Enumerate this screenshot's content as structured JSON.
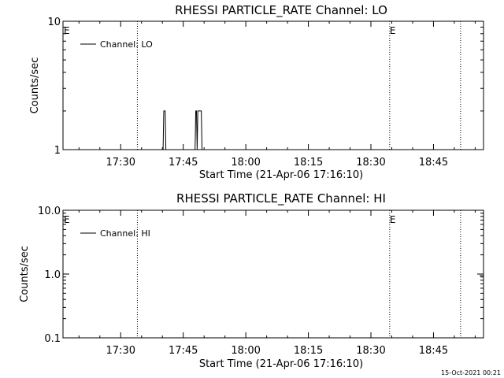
{
  "footer_timestamp": "15-Oct-2021 00:21",
  "chart_data": [
    {
      "type": "line",
      "title": "RHESSI PARTICLE_RATE Channel: LO",
      "xlabel": "Start Time (21-Apr-06 17:16:10)",
      "ylabel": "Counts/sec",
      "yscale": "log",
      "ylim": [
        1,
        10
      ],
      "ytick_values": [
        1,
        10
      ],
      "ytick_labels": [
        "1",
        "10"
      ],
      "xlim": [
        "17:16:10",
        "18:57:00"
      ],
      "xtick_labels": [
        "17:30",
        "17:45",
        "18:00",
        "18:15",
        "18:30",
        "18:45"
      ],
      "xtick_values": [
        "17:30",
        "17:45",
        "18:00",
        "18:15",
        "18:30",
        "18:45"
      ],
      "legend": "top-left",
      "series": [
        {
          "name": "Channel: LO",
          "points": [
            [
              "17:40:00",
              1
            ],
            [
              "17:40:10",
              1
            ],
            [
              "17:40:20",
              2
            ],
            [
              "17:40:40",
              2
            ],
            [
              "17:40:50",
              1
            ],
            [
              "17:41:00",
              1
            ],
            [
              "17:47:40",
              1
            ],
            [
              "17:47:50",
              1
            ],
            [
              "17:48:00",
              2
            ],
            [
              "17:48:10",
              2
            ],
            [
              "17:48:20",
              1
            ],
            [
              "17:48:30",
              2
            ],
            [
              "17:49:20",
              2
            ],
            [
              "17:49:30",
              1
            ],
            [
              "17:49:50",
              1
            ]
          ]
        }
      ],
      "vertical_lines": [
        "17:34:00",
        "18:34:30",
        "18:51:30"
      ],
      "markers": [
        {
          "label": "E",
          "x": "17:16:10"
        },
        {
          "label": "E",
          "x": "18:34:30"
        }
      ]
    },
    {
      "type": "line",
      "title": "RHESSI PARTICLE_RATE Channel: HI",
      "xlabel": "Start Time (21-Apr-06 17:16:10)",
      "ylabel": "Counts/sec",
      "yscale": "log",
      "ylim": [
        0.1,
        10
      ],
      "ytick_values": [
        0.1,
        1,
        10
      ],
      "ytick_labels": [
        "0.1",
        "1.0",
        "10.0"
      ],
      "xlim": [
        "17:16:10",
        "18:57:00"
      ],
      "xtick_labels": [
        "17:30",
        "17:45",
        "18:00",
        "18:15",
        "18:30",
        "18:45"
      ],
      "xtick_values": [
        "17:30",
        "17:45",
        "18:00",
        "18:15",
        "18:30",
        "18:45"
      ],
      "legend": "top-left",
      "series": [
        {
          "name": "Channel: HI",
          "points": []
        }
      ],
      "vertical_lines": [
        "17:34:00",
        "18:34:30",
        "18:51:30"
      ],
      "markers": [
        {
          "label": "E",
          "x": "17:16:10"
        },
        {
          "label": "E",
          "x": "18:34:30"
        }
      ]
    }
  ]
}
